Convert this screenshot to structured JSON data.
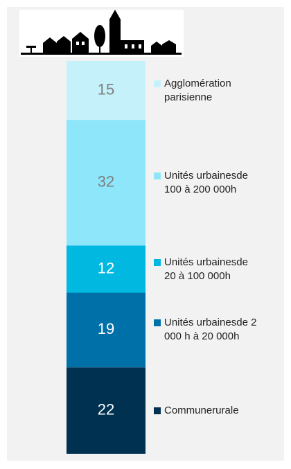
{
  "chart_data": {
    "type": "bar",
    "stacked": true,
    "categories": [
      null
    ],
    "ylim": [
      0,
      100
    ],
    "series": [
      {
        "name": "Communerurale",
        "color": "#003150",
        "label_color": "#ffffff",
        "values": [
          22
        ]
      },
      {
        "name": "Unités urbainesde 2 000 h à 20 000h",
        "color": "#0070a8",
        "label_color": "#ffffff",
        "values": [
          19
        ]
      },
      {
        "name": "Unités urbainesde 20 à 100 000h",
        "color": "#00b8e0",
        "label_color": "#ffffff",
        "values": [
          12
        ]
      },
      {
        "name": "Unités urbainesde 100 à 200 000h",
        "color": "#8ee6fb",
        "label_color": "#7f7f7f",
        "values": [
          32
        ]
      },
      {
        "name": "Agglomération parisienne",
        "color": "#c5f1fb",
        "label_color": "#7f7f7f",
        "values": [
          15
        ]
      }
    ]
  }
}
